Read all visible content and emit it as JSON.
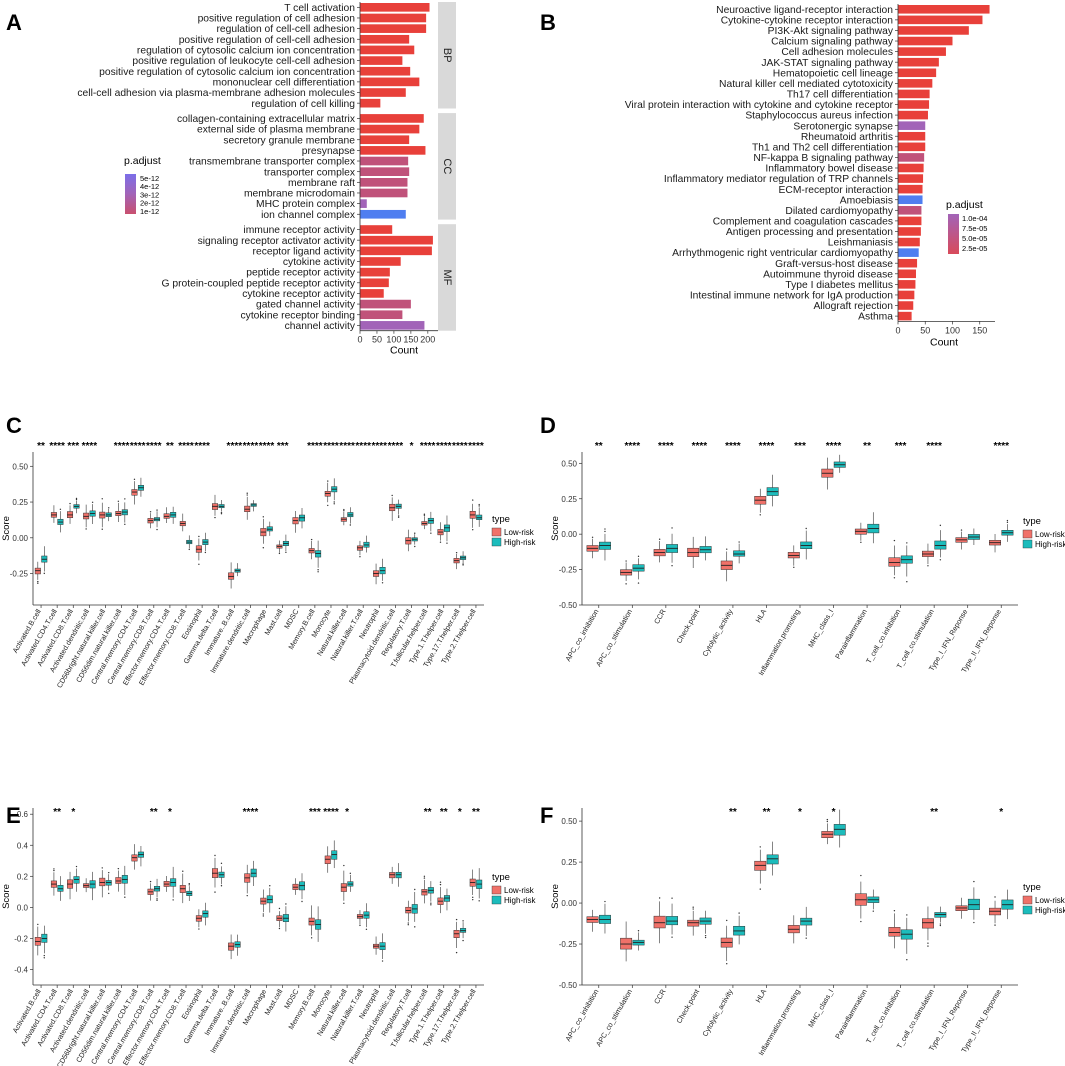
{
  "figure_labels": [
    "A",
    "B",
    "C",
    "D",
    "E",
    "F"
  ],
  "colors": {
    "red": "#e8403a",
    "purple": "#a264b8",
    "mauve": "#c0527a",
    "blue": "#4f7ef0",
    "low": "#f07169",
    "high": "#1cbcbc",
    "strip": "#d9d9d9"
  },
  "chart_data": [
    {
      "panel": "A",
      "type": "bar",
      "orientation": "horizontal",
      "xlabel": "Count",
      "xticks": [
        0,
        50,
        100,
        150,
        200
      ],
      "xlim": [
        0,
        230
      ],
      "legend_title": "p.adjust",
      "legend_ticks": [
        "5e-12",
        "4e-12",
        "3e-12",
        "2e-12",
        "1e-12"
      ],
      "groups": [
        {
          "name": "BP",
          "categories": [
            "T cell activation",
            "positive regulation of cell adhesion",
            "regulation of cell-cell adhesion",
            "positive regulation of cell-cell adhesion",
            "regulation of cytosolic calcium ion concentration",
            "positive regulation of leukocyte cell-cell adhesion",
            "positive regulation of cytosolic calcium ion concentration",
            "mononuclear cell differentiation",
            "cell-cell adhesion via plasma-membrane adhesion molecules",
            "regulation of cell killing"
          ],
          "values": [
            205,
            195,
            195,
            145,
            160,
            125,
            148,
            175,
            135,
            60
          ],
          "colors": [
            "red",
            "red",
            "red",
            "red",
            "red",
            "red",
            "red",
            "red",
            "red",
            "red"
          ]
        },
        {
          "name": "CC",
          "categories": [
            "collagen-containing extracellular matrix",
            "external side of plasma membrane",
            "secretory granule membrane",
            "presynapse",
            "transmembrane transporter complex",
            "transporter complex",
            "membrane raft",
            "membrane microdomain",
            "MHC protein complex",
            "ion channel complex"
          ],
          "values": [
            188,
            175,
            145,
            193,
            142,
            145,
            140,
            140,
            20,
            135
          ],
          "colors": [
            "red",
            "red",
            "red",
            "red",
            "mauve",
            "mauve",
            "mauve",
            "mauve",
            "purple",
            "blue"
          ]
        },
        {
          "name": "MF",
          "categories": [
            "immune receptor activity",
            "signaling receptor activator activity",
            "receptor ligand activity",
            "cytokine activity",
            "peptide receptor activity",
            "G protein-coupled peptide receptor activity",
            "cytokine receptor activity",
            "gated channel activity",
            "cytokine receptor binding",
            "channel activity"
          ],
          "values": [
            95,
            215,
            212,
            120,
            88,
            85,
            70,
            150,
            125,
            190
          ],
          "colors": [
            "red",
            "red",
            "red",
            "red",
            "red",
            "red",
            "red",
            "mauve",
            "mauve",
            "purple"
          ]
        }
      ]
    },
    {
      "panel": "B",
      "type": "bar",
      "orientation": "horizontal",
      "xlabel": "Count",
      "xticks": [
        0,
        50,
        100,
        150
      ],
      "xlim": [
        0,
        178
      ],
      "legend_title": "p.adjust",
      "legend_ticks": [
        "1.0e-04",
        "7.5e-05",
        "5.0e-05",
        "2.5e-05"
      ],
      "categories": [
        "Neuroactive ligand-receptor interaction",
        "Cytokine-cytokine receptor interaction",
        "PI3K-Akt signaling pathway",
        "Calcium signaling pathway",
        "Cell adhesion molecules",
        "JAK-STAT signaling pathway",
        "Hematopoietic cell lineage",
        "Natural killer cell mediated cytotoxicity",
        "Th17 cell differentiation",
        "Viral protein interaction with cytokine and cytokine receptor",
        "Staphylococcus aureus infection",
        "Serotonergic synapse",
        "Rheumatoid arthritis",
        "Th1 and Th2 cell differentiation",
        "NF-kappa B signaling pathway",
        "Inflammatory bowel disease",
        "Inflammatory mediator regulation of TRP channels",
        "ECM-receptor interaction",
        "Amoebiasis",
        "Dilated cardiomyopathy",
        "Complement and coagulation cascades",
        "Antigen processing and presentation",
        "Leishmaniasis",
        "Arrhythmogenic right ventricular cardiomyopathy",
        "Graft-versus-host disease",
        "Autoimmune thyroid disease",
        "Type I diabetes mellitus",
        "Intestinal immune network for IgA production",
        "Allograft rejection",
        "Asthma"
      ],
      "values": [
        168,
        155,
        130,
        100,
        88,
        75,
        70,
        63,
        58,
        57,
        55,
        50,
        50,
        50,
        48,
        47,
        46,
        45,
        45,
        43,
        43,
        42,
        40,
        38,
        35,
        33,
        32,
        30,
        28,
        25
      ],
      "colors": [
        "red",
        "red",
        "red",
        "red",
        "red",
        "red",
        "red",
        "red",
        "red",
        "red",
        "red",
        "purple",
        "red",
        "red",
        "mauve",
        "red",
        "red",
        "red",
        "blue",
        "mauve",
        "red",
        "red",
        "red",
        "blue",
        "red",
        "red",
        "red",
        "red",
        "red",
        "red"
      ]
    },
    {
      "panel": "C",
      "type": "box",
      "ylabel": "Score",
      "yticks": [
        -0.25,
        0.0,
        0.25,
        0.5
      ],
      "ytick_labels": [
        "-0.25",
        "0.00",
        "0.25",
        "0.50"
      ],
      "ylim": [
        -0.47,
        0.6
      ],
      "legend_title": "type",
      "legend_entries": [
        "Low-risk",
        "High-risk"
      ],
      "categories": [
        "Activated.B.cell",
        "Activated.CD4.T.cell",
        "Activated.CD8.T.cell",
        "Activated.dendritic.cell",
        "CD56bright.natural.killer.cell",
        "CD56dim.natural.killer.cell",
        "Central.memory.CD4.T.cell",
        "Central.memory.CD8.T.cell",
        "Effector.memory.CD4.T.cell",
        "Effector.memory.CD8.T.cell",
        "Eosinophil",
        "Gamma.delta.T.cell",
        "Immature..B.cell",
        "Immature.dendritic.cell",
        "Macrophage",
        "Mast.cell",
        "MDSC",
        "Memory.B.cell",
        "Monocyte",
        "Natural.killer.cell",
        "Natural.killer.T.cell",
        "Neutrophil",
        "Plasmacytoid.dendritic.cell",
        "Regulatory.T.cell",
        "T.follicular.helper.cell",
        "Type.1.T.helper.cell",
        "Type.17.T.helper.cell",
        "Type.2.T.helper.cell"
      ],
      "significance": [
        "**",
        "****",
        "***",
        "****",
        "",
        "****",
        "****",
        "****",
        "**",
        "****",
        "****",
        "",
        "****",
        "****",
        "****",
        "***",
        "",
        "****",
        "****",
        "****",
        "****",
        "****",
        "****",
        "*",
        "****",
        "****",
        "****",
        "****"
      ],
      "low_median": [
        -0.23,
        0.16,
        0.16,
        0.15,
        0.16,
        0.17,
        0.32,
        0.12,
        0.15,
        0.1,
        -0.08,
        0.22,
        -0.27,
        0.2,
        0.04,
        -0.06,
        0.12,
        -0.09,
        0.31,
        0.13,
        -0.07,
        -0.25,
        0.21,
        -0.02,
        0.1,
        0.04,
        -0.16,
        0.16
      ],
      "high_median": [
        -0.15,
        0.11,
        0.22,
        0.17,
        0.16,
        0.18,
        0.35,
        0.13,
        0.16,
        -0.03,
        -0.03,
        0.22,
        -0.23,
        0.23,
        0.06,
        -0.04,
        0.14,
        -0.11,
        0.34,
        0.16,
        -0.05,
        -0.23,
        0.22,
        -0.01,
        0.12,
        0.07,
        -0.14,
        0.14
      ]
    },
    {
      "panel": "D",
      "type": "box",
      "ylabel": "Score",
      "yticks": [
        -0.5,
        -0.25,
        0.0,
        0.25,
        0.5
      ],
      "ytick_labels": [
        "-0.50",
        "-0.25",
        "0.00",
        "0.25",
        "0.50"
      ],
      "ylim": [
        -0.5,
        0.58
      ],
      "legend_title": "type",
      "legend_entries": [
        "Low-risk",
        "High-risk"
      ],
      "categories": [
        "APC_co_inhibition",
        "APC_co_stimulation",
        "CCR",
        "Check.point",
        "Cytolytic_activity",
        "HLA",
        "Inflammation.promoting",
        "MHC_class_I",
        "Parainflammation",
        "T_cell_co.inhibition",
        "T_cell_co.stimulation",
        "Type_I_IFN_Reponse",
        "Type_II_IFN_Reponse"
      ],
      "significance": [
        "**",
        "****",
        "****",
        "****",
        "****",
        "****",
        "***",
        "****",
        "**",
        "***",
        "****",
        "",
        "****"
      ],
      "low_median": [
        -0.1,
        -0.27,
        -0.13,
        -0.13,
        -0.22,
        0.24,
        -0.15,
        0.43,
        0.02,
        -0.2,
        -0.14,
        -0.04,
        -0.06
      ],
      "high_median": [
        -0.08,
        -0.24,
        -0.1,
        -0.11,
        -0.14,
        0.3,
        -0.08,
        0.49,
        0.04,
        -0.18,
        -0.08,
        -0.02,
        0.01
      ]
    },
    {
      "panel": "E",
      "type": "box",
      "ylabel": "Score",
      "yticks": [
        -0.4,
        -0.2,
        0.0,
        0.2,
        0.4,
        0.6
      ],
      "ytick_labels": [
        "-0.4",
        "-0.2",
        "0.0",
        "0.2",
        "0.4",
        "0.6"
      ],
      "ylim": [
        -0.5,
        0.64
      ],
      "legend_title": "type",
      "legend_entries": [
        "Low-risk",
        "High-risk"
      ],
      "categories": [
        "Activated.B.cell",
        "Activated.CD4.T.cell",
        "Activated.CD8.T.cell",
        "Activated.dendritic.cell",
        "CD56bright.natural.killer.cell",
        "CD56dim.natural.killer.cell",
        "Central.memory.CD4.T.cell",
        "Central.memory.CD8.T.cell",
        "Effector.memory.CD4.T.cell",
        "Effector.memory.CD8.T.cell",
        "Eosinophil",
        "Gamma.delta.T.cell",
        "Immature..B.cell",
        "Immature.dendritic.cell",
        "Macrophage",
        "Mast.cell",
        "MDSC",
        "Memory.B.cell",
        "Monocyte",
        "Natural.killer.cell",
        "Natural.killer.T.cell",
        "Neutrophil",
        "Plasmacytoid.dendritic.cell",
        "Regulatory.T.cell",
        "T.follicular.helper.cell",
        "Type.1.T.helper.cell",
        "Type.17.T.helper.cell",
        "Type.2.T.helper.cell"
      ],
      "significance": [
        "",
        "**",
        "*",
        "",
        "",
        "",
        "",
        "**",
        "*",
        "",
        "",
        "",
        "",
        "****",
        "",
        "",
        "",
        "***",
        "****",
        "*",
        "",
        "",
        "",
        "",
        "**",
        "**",
        "*",
        "**"
      ],
      "low_median": [
        -0.22,
        0.15,
        0.15,
        0.14,
        0.16,
        0.17,
        0.32,
        0.1,
        0.15,
        0.12,
        -0.07,
        0.22,
        -0.25,
        0.19,
        0.04,
        -0.07,
        0.13,
        -0.09,
        0.31,
        0.13,
        -0.06,
        -0.25,
        0.21,
        -0.02,
        0.1,
        0.04,
        -0.17,
        0.16
      ],
      "high_median": [
        -0.2,
        0.12,
        0.18,
        0.15,
        0.16,
        0.18,
        0.34,
        0.12,
        0.16,
        0.09,
        -0.04,
        0.21,
        -0.24,
        0.22,
        0.05,
        -0.07,
        0.14,
        -0.11,
        0.34,
        0.15,
        -0.05,
        -0.25,
        0.21,
        -0.01,
        0.11,
        0.06,
        -0.15,
        0.15
      ]
    },
    {
      "panel": "F",
      "type": "box",
      "ylabel": "Score",
      "yticks": [
        -0.5,
        -0.25,
        0.0,
        0.25,
        0.5
      ],
      "ytick_labels": [
        "-0.50",
        "-0.25",
        "0.00",
        "0.25",
        "0.50"
      ],
      "ylim": [
        -0.5,
        0.58
      ],
      "legend_title": "type",
      "legend_entries": [
        "Low-risk",
        "High-risk"
      ],
      "categories": [
        "APC_co_inhibition",
        "APC_co_stimulation",
        "CCR",
        "Check.point",
        "Cytolytic_activity",
        "HLA",
        "Inflammation.promoting",
        "MHC_class_I",
        "Parainflammation",
        "T_cell_co.inhibition",
        "T_cell_co.stimulation",
        "Type_I_IFN_Reponse",
        "Type_II_IFN_Reponse"
      ],
      "significance": [
        "",
        "",
        "",
        "",
        "**",
        "**",
        "*",
        "*",
        "",
        "",
        "**",
        "",
        "*"
      ],
      "low_median": [
        -0.1,
        -0.25,
        -0.12,
        -0.12,
        -0.24,
        0.23,
        -0.16,
        0.42,
        0.02,
        -0.18,
        -0.12,
        -0.03,
        -0.05
      ],
      "high_median": [
        -0.1,
        -0.24,
        -0.11,
        -0.11,
        -0.17,
        0.27,
        -0.11,
        0.45,
        0.02,
        -0.19,
        -0.07,
        -0.01,
        -0.01
      ]
    }
  ]
}
